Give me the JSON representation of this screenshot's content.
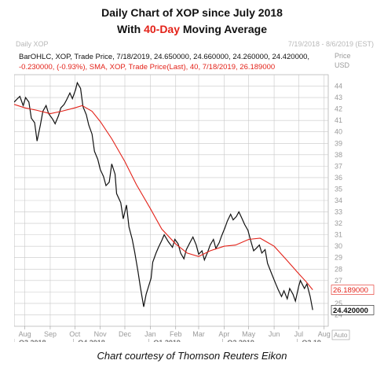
{
  "title": {
    "prefix": "Daily Chart of XOP since July 2018",
    "line2_before": "With ",
    "line2_accent": "40-Day",
    "line2_after": " Moving Average"
  },
  "header": {
    "left": "Daily XOP",
    "right": "7/19/2018 - 8/6/2019 (EST)"
  },
  "info": {
    "ohlc": "BarOHLC, XOP, Trade Price, 7/18/2019, 24.650000, 24.660000, 24.260000, 24.420000,",
    "sma": "-0.230000, (-0.93%), SMA, XOP, Trade Price(Last), 40, 7/18/2019, 26.189000"
  },
  "caption": "Chart courtesy of Thomson Reuters Eikon",
  "colors": {
    "price": "#111111",
    "sma": "#e32219",
    "grid": "#c8c8c8",
    "axis_text": "#9a9a9a",
    "quarter_text": "#777777",
    "title_accent": "#e32219"
  },
  "chart_data": {
    "type": "line",
    "ticker": "XOP",
    "x_start": "2018-07-19",
    "x_end": "2019-08-06",
    "ylim": [
      23,
      45
    ],
    "ytick_step": 1,
    "price_unit": "USD",
    "grid": true,
    "month_labels": [
      {
        "date": "2018-08-01",
        "label": "Aug"
      },
      {
        "date": "2018-09-01",
        "label": "Sep"
      },
      {
        "date": "2018-10-01",
        "label": "Oct"
      },
      {
        "date": "2018-11-01",
        "label": "Nov"
      },
      {
        "date": "2018-12-01",
        "label": "Dec"
      },
      {
        "date": "2019-01-01",
        "label": "Jan"
      },
      {
        "date": "2019-02-01",
        "label": "Feb"
      },
      {
        "date": "2019-03-01",
        "label": "Mar"
      },
      {
        "date": "2019-04-01",
        "label": "Apr"
      },
      {
        "date": "2019-05-01",
        "label": "May"
      },
      {
        "date": "2019-06-01",
        "label": "Jun"
      },
      {
        "date": "2019-07-01",
        "label": "Jul"
      },
      {
        "date": "2019-08-01",
        "label": "Aug"
      }
    ],
    "quarter_labels": [
      {
        "date": "2018-07-19",
        "label": "Q3 2018"
      },
      {
        "date": "2018-10-01",
        "label": "Q4 2018"
      },
      {
        "date": "2019-01-01",
        "label": "Q1 2019"
      },
      {
        "date": "2019-04-01",
        "label": "Q2 2019"
      },
      {
        "date": "2019-07-01",
        "label": "Q3 19"
      }
    ],
    "series": [
      {
        "name": "XOP",
        "points": [
          [
            "2018-07-19",
            42.6
          ],
          [
            "2018-07-23",
            42.9
          ],
          [
            "2018-07-26",
            43.1
          ],
          [
            "2018-07-30",
            42.3
          ],
          [
            "2018-08-02",
            43.0
          ],
          [
            "2018-08-06",
            42.6
          ],
          [
            "2018-08-09",
            41.2
          ],
          [
            "2018-08-13",
            40.8
          ],
          [
            "2018-08-16",
            39.2
          ],
          [
            "2018-08-20",
            40.6
          ],
          [
            "2018-08-23",
            41.8
          ],
          [
            "2018-08-27",
            42.3
          ],
          [
            "2018-08-30",
            41.6
          ],
          [
            "2018-09-04",
            41.1
          ],
          [
            "2018-09-07",
            40.7
          ],
          [
            "2018-09-11",
            41.4
          ],
          [
            "2018-09-14",
            42.1
          ],
          [
            "2018-09-18",
            42.4
          ],
          [
            "2018-09-21",
            42.8
          ],
          [
            "2018-09-25",
            43.4
          ],
          [
            "2018-09-28",
            42.9
          ],
          [
            "2018-10-02",
            43.7
          ],
          [
            "2018-10-04",
            44.3
          ],
          [
            "2018-10-08",
            43.8
          ],
          [
            "2018-10-11",
            42.2
          ],
          [
            "2018-10-15",
            41.5
          ],
          [
            "2018-10-18",
            40.6
          ],
          [
            "2018-10-22",
            39.8
          ],
          [
            "2018-10-25",
            38.3
          ],
          [
            "2018-10-29",
            37.6
          ],
          [
            "2018-11-01",
            36.7
          ],
          [
            "2018-11-05",
            36.1
          ],
          [
            "2018-11-08",
            35.3
          ],
          [
            "2018-11-12",
            35.6
          ],
          [
            "2018-11-15",
            37.2
          ],
          [
            "2018-11-19",
            36.3
          ],
          [
            "2018-11-21",
            34.6
          ],
          [
            "2018-11-26",
            33.8
          ],
          [
            "2018-11-29",
            32.4
          ],
          [
            "2018-12-03",
            33.6
          ],
          [
            "2018-12-06",
            31.7
          ],
          [
            "2018-12-10",
            30.6
          ],
          [
            "2018-12-13",
            29.5
          ],
          [
            "2018-12-17",
            27.8
          ],
          [
            "2018-12-20",
            26.4
          ],
          [
            "2018-12-24",
            24.7
          ],
          [
            "2018-12-27",
            25.8
          ],
          [
            "2019-01-02",
            27.2
          ],
          [
            "2019-01-04",
            28.6
          ],
          [
            "2019-01-08",
            29.4
          ],
          [
            "2019-01-11",
            29.9
          ],
          [
            "2019-01-15",
            30.5
          ],
          [
            "2019-01-18",
            31.0
          ],
          [
            "2019-01-23",
            30.4
          ],
          [
            "2019-01-28",
            29.9
          ],
          [
            "2019-01-31",
            30.6
          ],
          [
            "2019-02-04",
            30.2
          ],
          [
            "2019-02-07",
            29.4
          ],
          [
            "2019-02-11",
            28.9
          ],
          [
            "2019-02-14",
            29.7
          ],
          [
            "2019-02-19",
            30.4
          ],
          [
            "2019-02-22",
            30.8
          ],
          [
            "2019-02-26",
            30.1
          ],
          [
            "2019-03-01",
            29.3
          ],
          [
            "2019-03-05",
            29.6
          ],
          [
            "2019-03-08",
            28.8
          ],
          [
            "2019-03-12",
            29.5
          ],
          [
            "2019-03-15",
            30.1
          ],
          [
            "2019-03-19",
            30.6
          ],
          [
            "2019-03-22",
            29.8
          ],
          [
            "2019-03-26",
            30.3
          ],
          [
            "2019-03-29",
            30.9
          ],
          [
            "2019-04-02",
            31.6
          ],
          [
            "2019-04-05",
            32.2
          ],
          [
            "2019-04-09",
            32.8
          ],
          [
            "2019-04-12",
            32.3
          ],
          [
            "2019-04-16",
            32.6
          ],
          [
            "2019-04-19",
            33.0
          ],
          [
            "2019-04-23",
            32.4
          ],
          [
            "2019-04-26",
            31.9
          ],
          [
            "2019-04-30",
            31.4
          ],
          [
            "2019-05-03",
            30.6
          ],
          [
            "2019-05-07",
            29.6
          ],
          [
            "2019-05-10",
            29.8
          ],
          [
            "2019-05-14",
            30.1
          ],
          [
            "2019-05-17",
            29.4
          ],
          [
            "2019-05-21",
            29.7
          ],
          [
            "2019-05-24",
            28.5
          ],
          [
            "2019-05-29",
            27.6
          ],
          [
            "2019-06-03",
            26.7
          ],
          [
            "2019-06-06",
            26.2
          ],
          [
            "2019-06-10",
            25.6
          ],
          [
            "2019-06-13",
            26.1
          ],
          [
            "2019-06-17",
            25.4
          ],
          [
            "2019-06-20",
            26.3
          ],
          [
            "2019-06-24",
            25.8
          ],
          [
            "2019-06-27",
            25.2
          ],
          [
            "2019-07-01",
            26.5
          ],
          [
            "2019-07-03",
            27.0
          ],
          [
            "2019-07-08",
            26.3
          ],
          [
            "2019-07-11",
            26.7
          ],
          [
            "2019-07-15",
            25.6
          ],
          [
            "2019-07-18",
            24.42
          ]
        ]
      },
      {
        "name": "SMA (40)",
        "points": [
          [
            "2018-07-19",
            42.4
          ],
          [
            "2018-08-01",
            42.1
          ],
          [
            "2018-08-15",
            41.9
          ],
          [
            "2018-09-01",
            41.6
          ],
          [
            "2018-09-15",
            41.8
          ],
          [
            "2018-10-01",
            42.1
          ],
          [
            "2018-10-10",
            42.3
          ],
          [
            "2018-10-22",
            41.8
          ],
          [
            "2018-11-01",
            40.9
          ],
          [
            "2018-11-15",
            39.4
          ],
          [
            "2018-12-01",
            37.4
          ],
          [
            "2018-12-15",
            35.4
          ],
          [
            "2019-01-01",
            33.3
          ],
          [
            "2019-01-15",
            31.5
          ],
          [
            "2019-02-01",
            30.2
          ],
          [
            "2019-02-15",
            29.4
          ],
          [
            "2019-03-01",
            29.1
          ],
          [
            "2019-03-15",
            29.6
          ],
          [
            "2019-04-01",
            30.0
          ],
          [
            "2019-04-15",
            30.1
          ],
          [
            "2019-05-01",
            30.6
          ],
          [
            "2019-05-15",
            30.7
          ],
          [
            "2019-06-01",
            30.0
          ],
          [
            "2019-06-15",
            28.9
          ],
          [
            "2019-07-01",
            27.6
          ],
          [
            "2019-07-10",
            26.9
          ],
          [
            "2019-07-18",
            26.19
          ]
        ]
      }
    ],
    "last_labels": [
      {
        "series": "SMA (40)",
        "text": "26.189000",
        "value": 26.189
      },
      {
        "series": "XOP",
        "text": "24.420000",
        "value": 24.42
      }
    ],
    "axis_unit_label": "USD",
    "price_axis_header": "Price",
    "auto_label": "Auto"
  }
}
